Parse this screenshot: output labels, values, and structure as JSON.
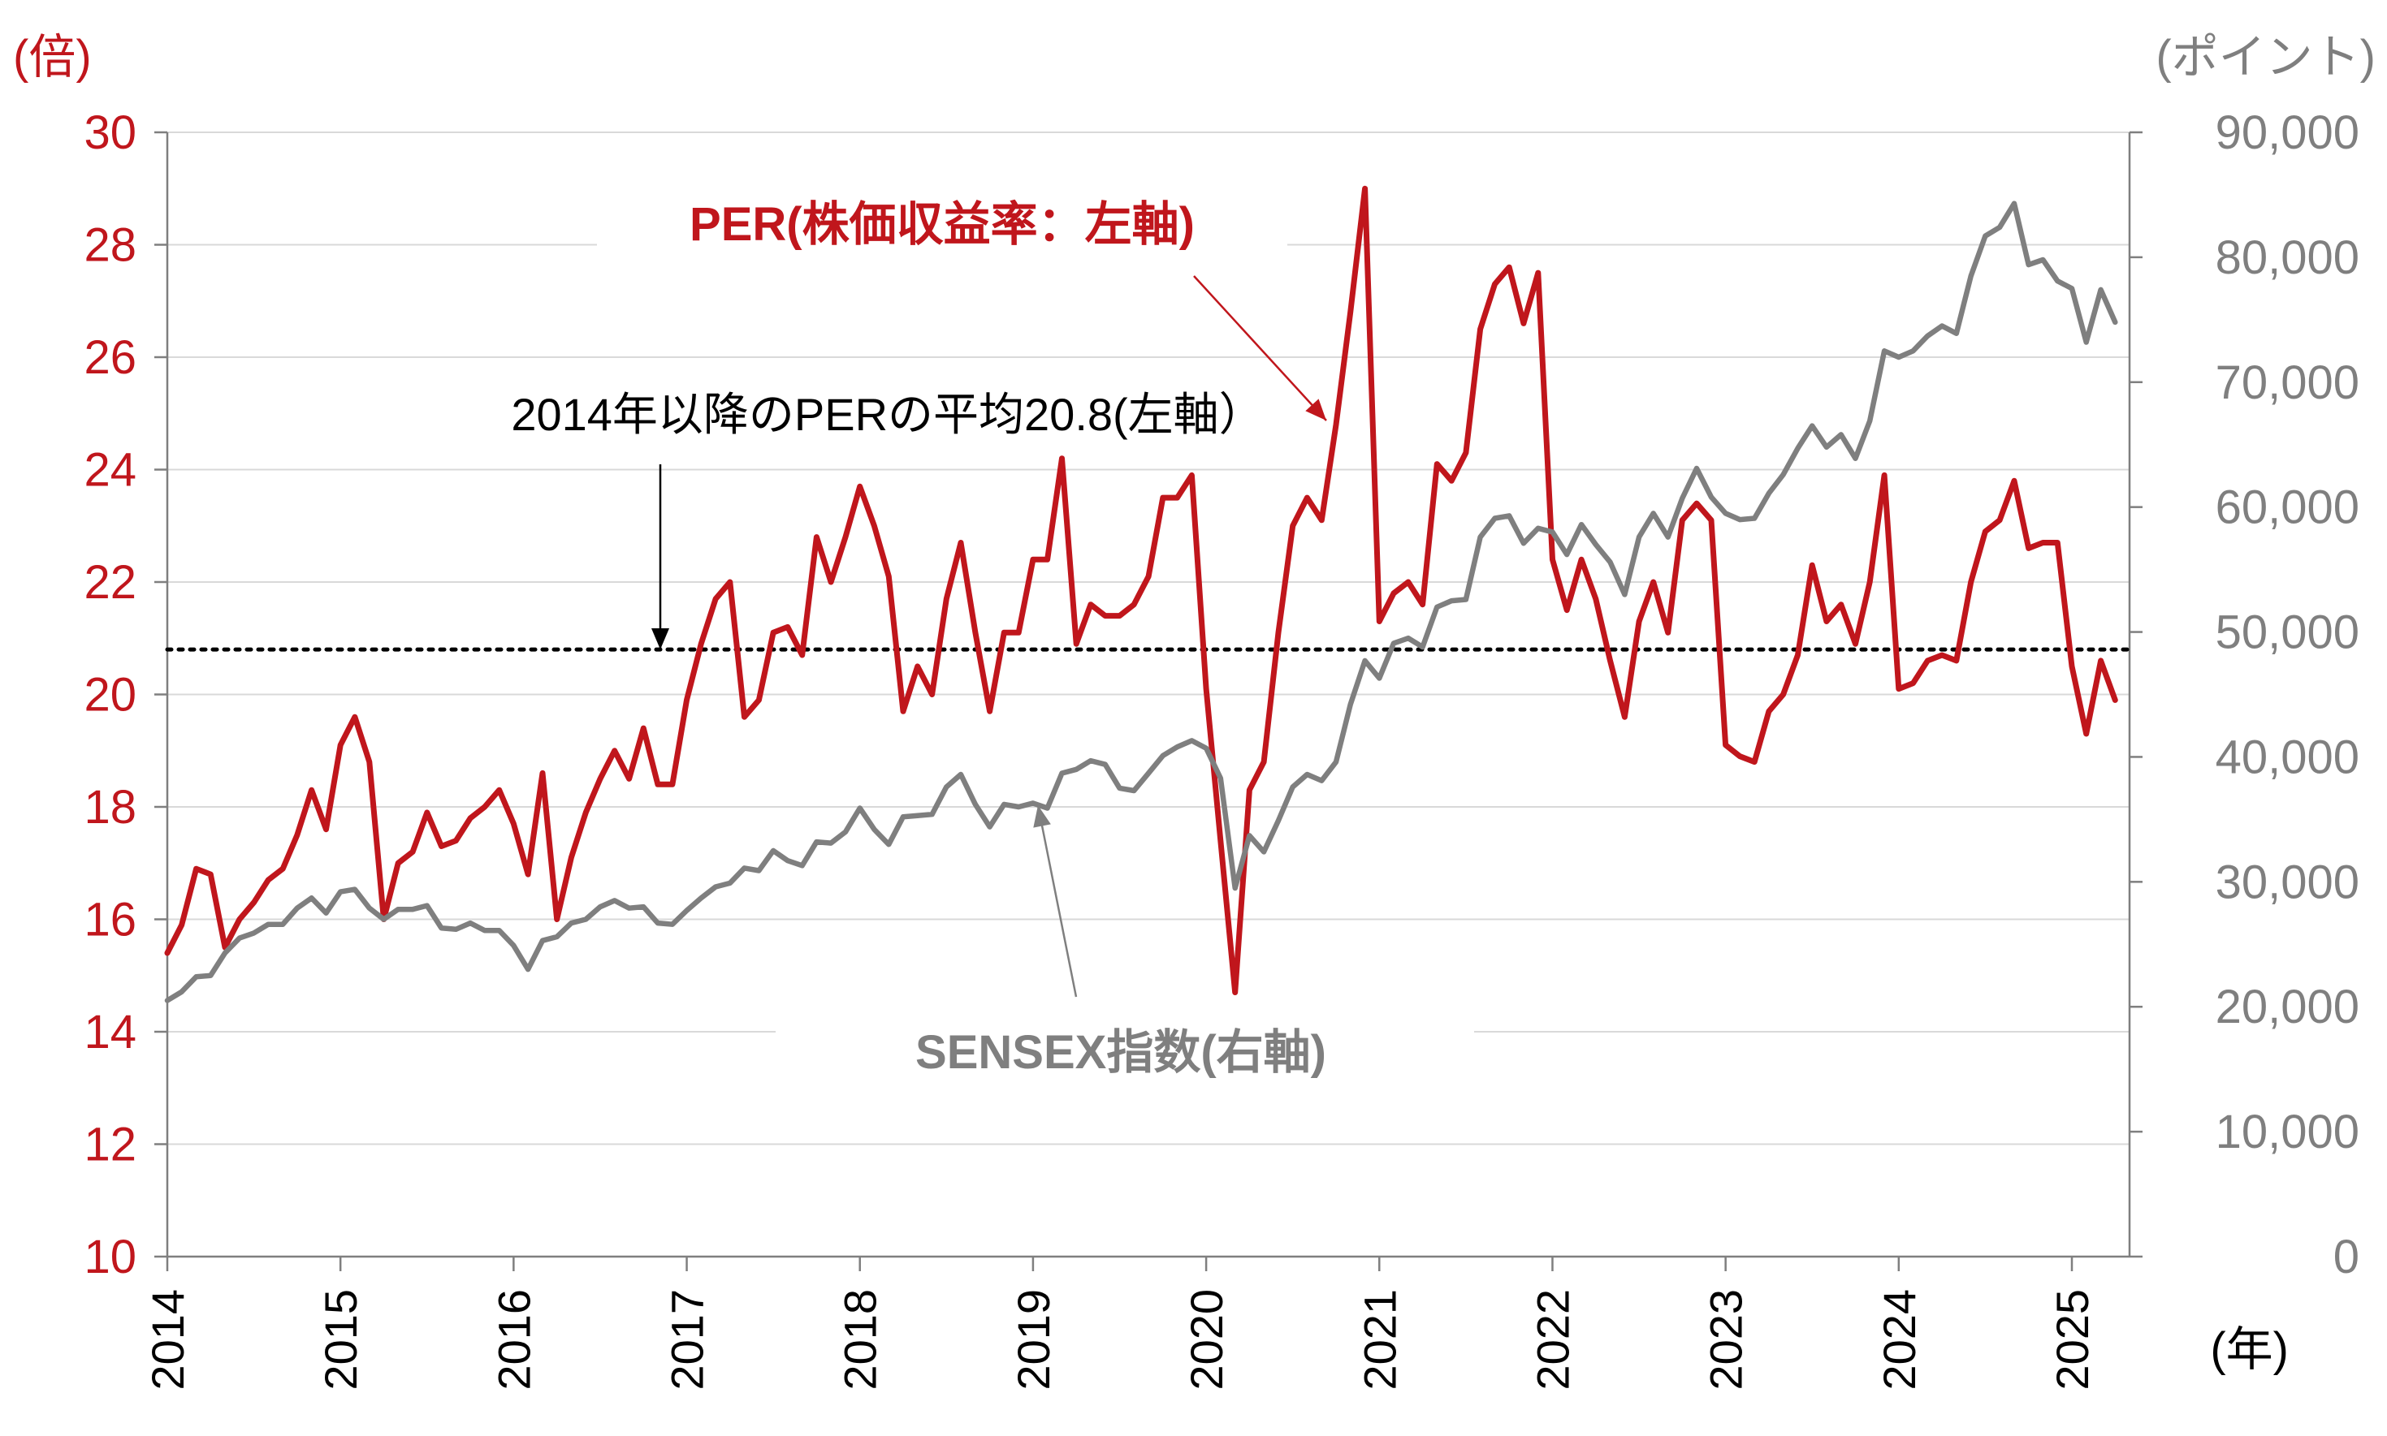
{
  "chart_data": {
    "type": "line",
    "title": "",
    "left_axis": {
      "unit": "(倍)",
      "ylim": [
        10,
        30
      ],
      "ticks": [
        "10",
        "12",
        "14",
        "16",
        "18",
        "20",
        "22",
        "24",
        "26",
        "28",
        "30"
      ]
    },
    "right_axis": {
      "unit": "(ポイント)",
      "ylim": [
        0,
        90000
      ],
      "ticks": [
        "0",
        "10,000",
        "20,000",
        "30,000",
        "40,000",
        "50,000",
        "60,000",
        "70,000",
        "80,000",
        "90,000"
      ]
    },
    "x_axis": {
      "unit": "(年)",
      "ticks": [
        "2014",
        "2015",
        "2016",
        "2017",
        "2018",
        "2019",
        "2020",
        "2021",
        "2022",
        "2023",
        "2024",
        "2025"
      ]
    },
    "grid": true,
    "colors": {
      "per": "#c0161c",
      "sensex": "#7f7f7f",
      "mean": "#000000"
    },
    "annotations": {
      "per_label": "PER(株価収益率：左軸)",
      "sensex_label": "SENSEX指数(右軸)",
      "mean_label": "2014年以降のPERの平均20.8(左軸）"
    },
    "mean_per": 20.8,
    "series": [
      {
        "key": "per",
        "name": "PER(株価収益率：左軸)",
        "axis": "left",
        "x": [
          2014.0,
          2014.083,
          2014.167,
          2014.25,
          2014.333,
          2014.417,
          2014.5,
          2014.583,
          2014.667,
          2014.75,
          2014.833,
          2014.917,
          2015.0,
          2015.083,
          2015.167,
          2015.25,
          2015.333,
          2015.417,
          2015.5,
          2015.583,
          2015.667,
          2015.75,
          2015.833,
          2015.917,
          2016.0,
          2016.083,
          2016.167,
          2016.25,
          2016.333,
          2016.417,
          2016.5,
          2016.583,
          2016.667,
          2016.75,
          2016.833,
          2016.917,
          2017.0,
          2017.083,
          2017.167,
          2017.25,
          2017.333,
          2017.417,
          2017.5,
          2017.583,
          2017.667,
          2017.75,
          2017.833,
          2017.917,
          2018.0,
          2018.083,
          2018.167,
          2018.25,
          2018.333,
          2018.417,
          2018.5,
          2018.583,
          2018.667,
          2018.75,
          2018.833,
          2018.917,
          2019.0,
          2019.083,
          2019.167,
          2019.25,
          2019.333,
          2019.417,
          2019.5,
          2019.583,
          2019.667,
          2019.75,
          2019.833,
          2019.917,
          2020.0,
          2020.083,
          2020.167,
          2020.25,
          2020.333,
          2020.417,
          2020.5,
          2020.583,
          2020.667,
          2020.75,
          2020.833,
          2020.917,
          2021.0,
          2021.083,
          2021.167,
          2021.25,
          2021.333,
          2021.417,
          2021.5,
          2021.583,
          2021.667,
          2021.75,
          2021.833,
          2021.917,
          2022.0,
          2022.083,
          2022.167,
          2022.25,
          2022.333,
          2022.417,
          2022.5,
          2022.583,
          2022.667,
          2022.75,
          2022.833,
          2022.917,
          2023.0,
          2023.083,
          2023.167,
          2023.25,
          2023.333,
          2023.417,
          2023.5,
          2023.583,
          2023.667,
          2023.75,
          2023.833,
          2023.917,
          2024.0,
          2024.083,
          2024.167,
          2024.25,
          2024.333,
          2024.417,
          2024.5,
          2024.583,
          2024.667,
          2024.75,
          2024.833,
          2024.917,
          2025.0,
          2025.083,
          2025.167,
          2025.25
        ],
        "values": [
          15.4,
          15.9,
          16.9,
          16.8,
          15.5,
          16.0,
          16.3,
          16.7,
          16.9,
          17.5,
          18.3,
          17.6,
          19.1,
          19.6,
          18.8,
          16.0,
          17.0,
          17.2,
          17.9,
          17.3,
          17.4,
          17.8,
          18.0,
          18.3,
          17.7,
          16.8,
          18.6,
          16.0,
          17.1,
          17.9,
          18.5,
          19.0,
          18.5,
          19.4,
          18.4,
          18.4,
          19.9,
          20.9,
          21.7,
          22.0,
          19.6,
          19.9,
          21.1,
          21.2,
          20.7,
          22.8,
          22.0,
          22.8,
          23.7,
          23.0,
          22.1,
          19.7,
          20.5,
          20.0,
          21.7,
          22.7,
          21.1,
          19.7,
          21.1,
          21.1,
          22.4,
          22.4,
          24.2,
          20.9,
          21.6,
          21.4,
          21.4,
          21.6,
          22.1,
          23.5,
          23.5,
          23.9,
          20.1,
          17.4,
          14.7,
          18.3,
          18.8,
          21.1,
          23.0,
          23.5,
          23.1,
          24.8,
          26.8,
          29.0,
          21.3,
          21.8,
          22.0,
          21.6,
          24.1,
          23.8,
          24.3,
          26.5,
          27.3,
          27.6,
          26.6,
          27.5,
          22.4,
          21.5,
          22.4,
          21.7,
          20.6,
          19.6,
          21.3,
          22.0,
          21.1,
          23.1,
          23.4,
          23.1,
          19.1,
          18.9,
          18.8,
          19.7,
          20.0,
          20.7,
          22.3,
          21.3,
          21.6,
          20.9,
          22.0,
          23.9,
          20.1,
          20.2,
          20.6,
          20.7,
          20.6,
          22.0,
          22.9,
          23.1,
          23.8,
          22.6,
          22.7,
          22.7,
          20.5,
          19.3,
          20.6,
          19.9
        ]
      },
      {
        "key": "sensex",
        "name": "SENSEX指数(右軸)",
        "axis": "right",
        "x": [
          2014.0,
          2014.083,
          2014.167,
          2014.25,
          2014.333,
          2014.417,
          2014.5,
          2014.583,
          2014.667,
          2014.75,
          2014.833,
          2014.917,
          2015.0,
          2015.083,
          2015.167,
          2015.25,
          2015.333,
          2015.417,
          2015.5,
          2015.583,
          2015.667,
          2015.75,
          2015.833,
          2015.917,
          2016.0,
          2016.083,
          2016.167,
          2016.25,
          2016.333,
          2016.417,
          2016.5,
          2016.583,
          2016.667,
          2016.75,
          2016.833,
          2016.917,
          2017.0,
          2017.083,
          2017.167,
          2017.25,
          2017.333,
          2017.417,
          2017.5,
          2017.583,
          2017.667,
          2017.75,
          2017.833,
          2017.917,
          2018.0,
          2018.083,
          2018.167,
          2018.25,
          2018.333,
          2018.417,
          2018.5,
          2018.583,
          2018.667,
          2018.75,
          2018.833,
          2018.917,
          2019.0,
          2019.083,
          2019.167,
          2019.25,
          2019.333,
          2019.417,
          2019.5,
          2019.583,
          2019.667,
          2019.75,
          2019.833,
          2019.917,
          2020.0,
          2020.083,
          2020.167,
          2020.25,
          2020.333,
          2020.417,
          2020.5,
          2020.583,
          2020.667,
          2020.75,
          2020.833,
          2020.917,
          2021.0,
          2021.083,
          2021.167,
          2021.25,
          2021.333,
          2021.417,
          2021.5,
          2021.583,
          2021.667,
          2021.75,
          2021.833,
          2021.917,
          2022.0,
          2022.083,
          2022.167,
          2022.25,
          2022.333,
          2022.417,
          2022.5,
          2022.583,
          2022.667,
          2022.75,
          2022.833,
          2022.917,
          2023.0,
          2023.083,
          2023.167,
          2023.25,
          2023.333,
          2023.417,
          2023.5,
          2023.583,
          2023.667,
          2023.75,
          2023.833,
          2023.917,
          2024.0,
          2024.083,
          2024.167,
          2024.25,
          2024.333,
          2024.417,
          2024.5,
          2024.583,
          2024.667,
          2024.75,
          2024.833,
          2024.917,
          2025.0,
          2025.083,
          2025.167,
          2025.25
        ],
        "values": [
          20500,
          21200,
          22400,
          22500,
          24300,
          25500,
          25900,
          26600,
          26600,
          27900,
          28700,
          27500,
          29200,
          29400,
          27900,
          27000,
          27800,
          27800,
          28100,
          26300,
          26200,
          26700,
          26100,
          26100,
          24900,
          23000,
          25300,
          25600,
          26700,
          27000,
          28000,
          28500,
          27900,
          28000,
          26700,
          26600,
          27700,
          28700,
          29600,
          29900,
          31100,
          30900,
          32500,
          31700,
          31300,
          33200,
          33100,
          34000,
          35900,
          34200,
          33000,
          35200,
          35300,
          35400,
          37600,
          38600,
          36200,
          34400,
          36200,
          36000,
          36300,
          35900,
          38700,
          39000,
          39700,
          39400,
          37500,
          37300,
          38700,
          40100,
          40800,
          41300,
          40700,
          38300,
          29500,
          33700,
          32400,
          34900,
          37600,
          38600,
          38100,
          39600,
          44200,
          47700,
          46300,
          49100,
          49500,
          48800,
          52000,
          52500,
          52600,
          57600,
          59100,
          59300,
          57100,
          58300,
          58000,
          56200,
          58600,
          57000,
          55600,
          53000,
          57600,
          59500,
          57600,
          60700,
          63100,
          60800,
          59500,
          59000,
          59100,
          61100,
          62600,
          64700,
          66500,
          64800,
          65800,
          63900,
          66900,
          72500,
          72000,
          72500,
          73700,
          74500,
          73900,
          78500,
          81700,
          82400,
          84300,
          79400,
          79800,
          78100,
          77500,
          73200,
          77400,
          74800
        ]
      }
    ]
  }
}
